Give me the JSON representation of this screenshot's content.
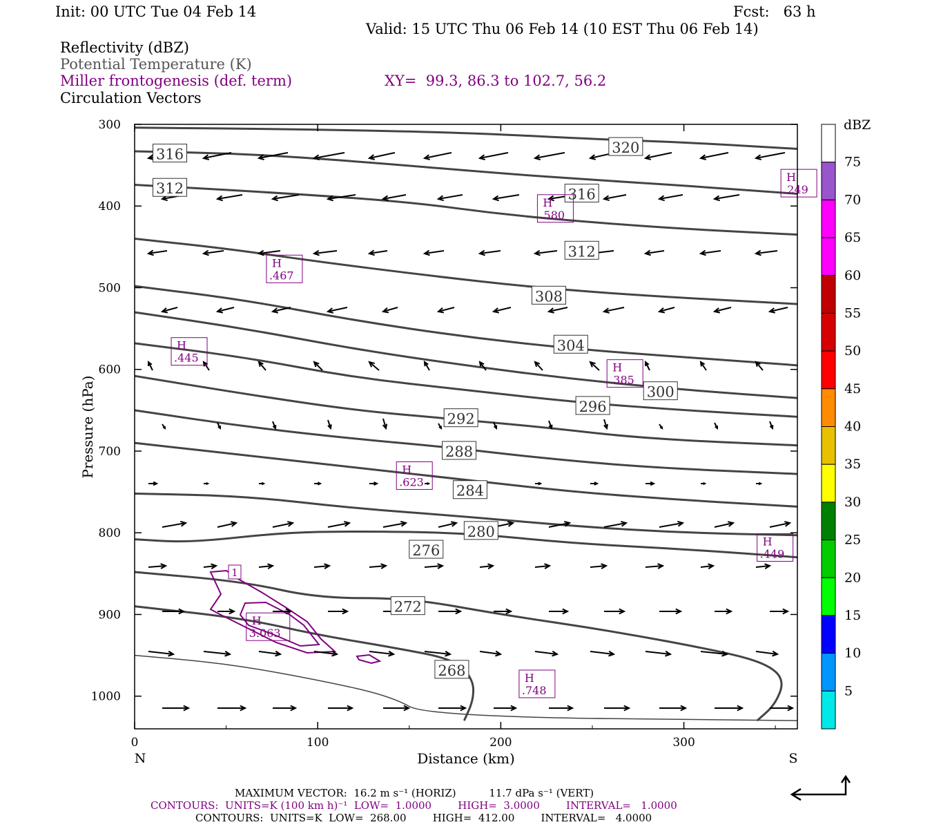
{
  "header": {
    "init": "Init: 00 UTC Tue 04 Feb 14",
    "fcst": "Fcst:   63 h",
    "valid": "Valid: 15 UTC Thu 06 Feb 14 (10 EST Thu 06 Feb 14)"
  },
  "legend": {
    "line1": "Reflectivity (dBZ)",
    "line2": "Potential Temperature (K)",
    "line3": "Miller frontogenesis (def. term)",
    "line4": "Circulation Vectors",
    "xy": "XY=  99.3, 86.3 to 102.7, 56.2"
  },
  "colors": {
    "theta": "#444444",
    "fronto": "#800080",
    "vector": "#000000"
  },
  "chart_data": {
    "type": "cross-section",
    "xlabel": "Distance (km)",
    "ylabel": "Pressure (hPa)",
    "xlim": [
      0,
      362
    ],
    "ylim": [
      1040,
      300
    ],
    "x_ticks": [
      0,
      100,
      200,
      300
    ],
    "y_ticks": [
      300,
      400,
      500,
      600,
      700,
      800,
      900,
      1000
    ],
    "x_end_labels": {
      "left": "N",
      "right": "S"
    },
    "theta_contours": [
      {
        "label": "320",
        "points": [
          [
            0,
            304
          ],
          [
            90,
            306
          ],
          [
            180,
            310
          ],
          [
            250,
            318
          ],
          [
            300,
            322
          ],
          [
            362,
            330
          ]
        ],
        "label_at": [
          259,
          328
        ]
      },
      {
        "label": "316",
        "points": [
          [
            0,
            333
          ],
          [
            60,
            336
          ],
          [
            120,
            345
          ],
          [
            200,
            360
          ],
          [
            250,
            368
          ],
          [
            300,
            375
          ],
          [
            362,
            385
          ]
        ],
        "label_at": [
          10,
          336
        ],
        "label2": "316",
        "label2_at": [
          235,
          385
        ]
      },
      {
        "label": "312",
        "points": [
          [
            0,
            374
          ],
          [
            80,
            384
          ],
          [
            150,
            395
          ],
          [
            200,
            410
          ],
          [
            250,
            420
          ],
          [
            300,
            428
          ],
          [
            362,
            435
          ]
        ],
        "label_at": [
          10,
          378
        ],
        "label2": "312",
        "label2_at": [
          235,
          455
        ]
      },
      {
        "label": "308",
        "points": [
          [
            0,
            440
          ],
          [
            50,
            452
          ],
          [
            100,
            468
          ],
          [
            160,
            485
          ],
          [
            220,
            500
          ],
          [
            280,
            510
          ],
          [
            362,
            520
          ]
        ],
        "label_at": [
          217,
          510
        ]
      },
      {
        "label": "304",
        "points": [
          [
            0,
            498
          ],
          [
            60,
            515
          ],
          [
            120,
            540
          ],
          [
            180,
            560
          ],
          [
            240,
            575
          ],
          [
            300,
            585
          ],
          [
            362,
            595
          ]
        ],
        "label_at": [
          229,
          570
        ]
      },
      {
        "label": "300",
        "points": [
          [
            0,
            530
          ],
          [
            60,
            550
          ],
          [
            120,
            575
          ],
          [
            180,
            595
          ],
          [
            240,
            612
          ],
          [
            300,
            625
          ],
          [
            362,
            635
          ]
        ],
        "label_at": [
          278,
          627
        ]
      },
      {
        "label": "296",
        "points": [
          [
            0,
            568
          ],
          [
            60,
            585
          ],
          [
            120,
            610
          ],
          [
            180,
            625
          ],
          [
            240,
            640
          ],
          [
            300,
            650
          ],
          [
            362,
            658
          ]
        ],
        "label_at": [
          241,
          645
        ]
      },
      {
        "label": "292",
        "points": [
          [
            0,
            608
          ],
          [
            60,
            630
          ],
          [
            120,
            650
          ],
          [
            170,
            660
          ],
          [
            220,
            670
          ],
          [
            280,
            685
          ],
          [
            362,
            693
          ]
        ],
        "label_at": [
          169,
          660
        ]
      },
      {
        "label": "288",
        "points": [
          [
            0,
            650
          ],
          [
            60,
            670
          ],
          [
            120,
            685
          ],
          [
            170,
            695
          ],
          [
            220,
            708
          ],
          [
            280,
            720
          ],
          [
            362,
            728
          ]
        ],
        "label_at": [
          168,
          700
        ]
      },
      {
        "label": "284",
        "points": [
          [
            0,
            690
          ],
          [
            60,
            705
          ],
          [
            120,
            720
          ],
          [
            180,
            735
          ],
          [
            240,
            750
          ],
          [
            300,
            760
          ],
          [
            362,
            768
          ]
        ],
        "label_at": [
          174,
          748
        ]
      },
      {
        "label": "280",
        "points": [
          [
            0,
            752
          ],
          [
            60,
            755
          ],
          [
            120,
            770
          ],
          [
            180,
            780
          ],
          [
            240,
            792
          ],
          [
            300,
            800
          ],
          [
            362,
            803
          ]
        ],
        "label_at": [
          180,
          798
        ]
      },
      {
        "label": "276",
        "points": [
          [
            0,
            808
          ],
          [
            30,
            812
          ],
          [
            80,
            800
          ],
          [
            120,
            798
          ],
          [
            180,
            800
          ],
          [
            240,
            813
          ],
          [
            300,
            820
          ],
          [
            362,
            830
          ]
        ],
        "label_at": [
          150,
          821
        ]
      },
      {
        "label": "272",
        "points": [
          [
            0,
            848
          ],
          [
            60,
            860
          ],
          [
            100,
            880
          ],
          [
            150,
            880
          ],
          [
            200,
            900
          ],
          [
            260,
            920
          ],
          [
            320,
            945
          ],
          [
            345,
            960
          ],
          [
            355,
            980
          ],
          [
            350,
            1010
          ],
          [
            340,
            1030
          ]
        ],
        "label_at": [
          140,
          890
        ]
      },
      {
        "label": "268",
        "points": [
          [
            0,
            890
          ],
          [
            60,
            905
          ],
          [
            100,
            925
          ],
          [
            140,
            940
          ],
          [
            175,
            955
          ],
          [
            185,
            980
          ],
          [
            185,
            1005
          ],
          [
            180,
            1030
          ]
        ],
        "label_at": [
          164,
          968
        ]
      },
      {
        "label": "",
        "points": [
          [
            0,
            950
          ],
          [
            50,
            960
          ],
          [
            100,
            980
          ],
          [
            140,
            1000
          ],
          [
            160,
            1025
          ],
          [
            362,
            1030
          ]
        ]
      }
    ],
    "fronto_highs": [
      {
        "label": ".249",
        "at": [
          353,
          372
        ]
      },
      {
        "label": ".580",
        "at": [
          220,
          403
        ]
      },
      {
        "label": ".467",
        "at": [
          72,
          477
        ]
      },
      {
        "label": ".445",
        "at": [
          20,
          578
        ]
      },
      {
        "label": ".385",
        "at": [
          258,
          605
        ]
      },
      {
        "label": ".623",
        "at": [
          143,
          730
        ]
      },
      {
        "label": ".449",
        "at": [
          340,
          818
        ]
      },
      {
        "label": "3.063",
        "at": [
          61,
          915
        ]
      },
      {
        "label": ".748",
        "at": [
          210,
          985
        ]
      }
    ],
    "fronto_contour_label": "1",
    "dbz_scale": {
      "unit": "dBZ",
      "levels": [
        "5",
        "10",
        "15",
        "20",
        "25",
        "30",
        "35",
        "40",
        "45",
        "50",
        "55",
        "60",
        "65",
        "70",
        "75"
      ],
      "colors": [
        "#00e8e8",
        "#0096ff",
        "#0000ff",
        "#00ff00",
        "#00cc00",
        "#008000",
        "#ffff00",
        "#e8c000",
        "#ff8c00",
        "#ff0000",
        "#d60000",
        "#c00000",
        "#ff00ff",
        "#ff00ff",
        "#9955cc"
      ]
    }
  },
  "footer": {
    "line1": "MAXIMUM VECTOR:  16.2 m s⁻¹ (HORIZ)          11.7 dPa s⁻¹ (VERT)",
    "line2": "CONTOURS:  UNITS=K (100 km h)⁻¹  LOW=  1.0000        HIGH=  3.0000        INTERVAL=   1.0000",
    "line3": "CONTOURS:  UNITS=K  LOW=  268.00        HIGH=  412.00        INTERVAL=   4.0000"
  }
}
